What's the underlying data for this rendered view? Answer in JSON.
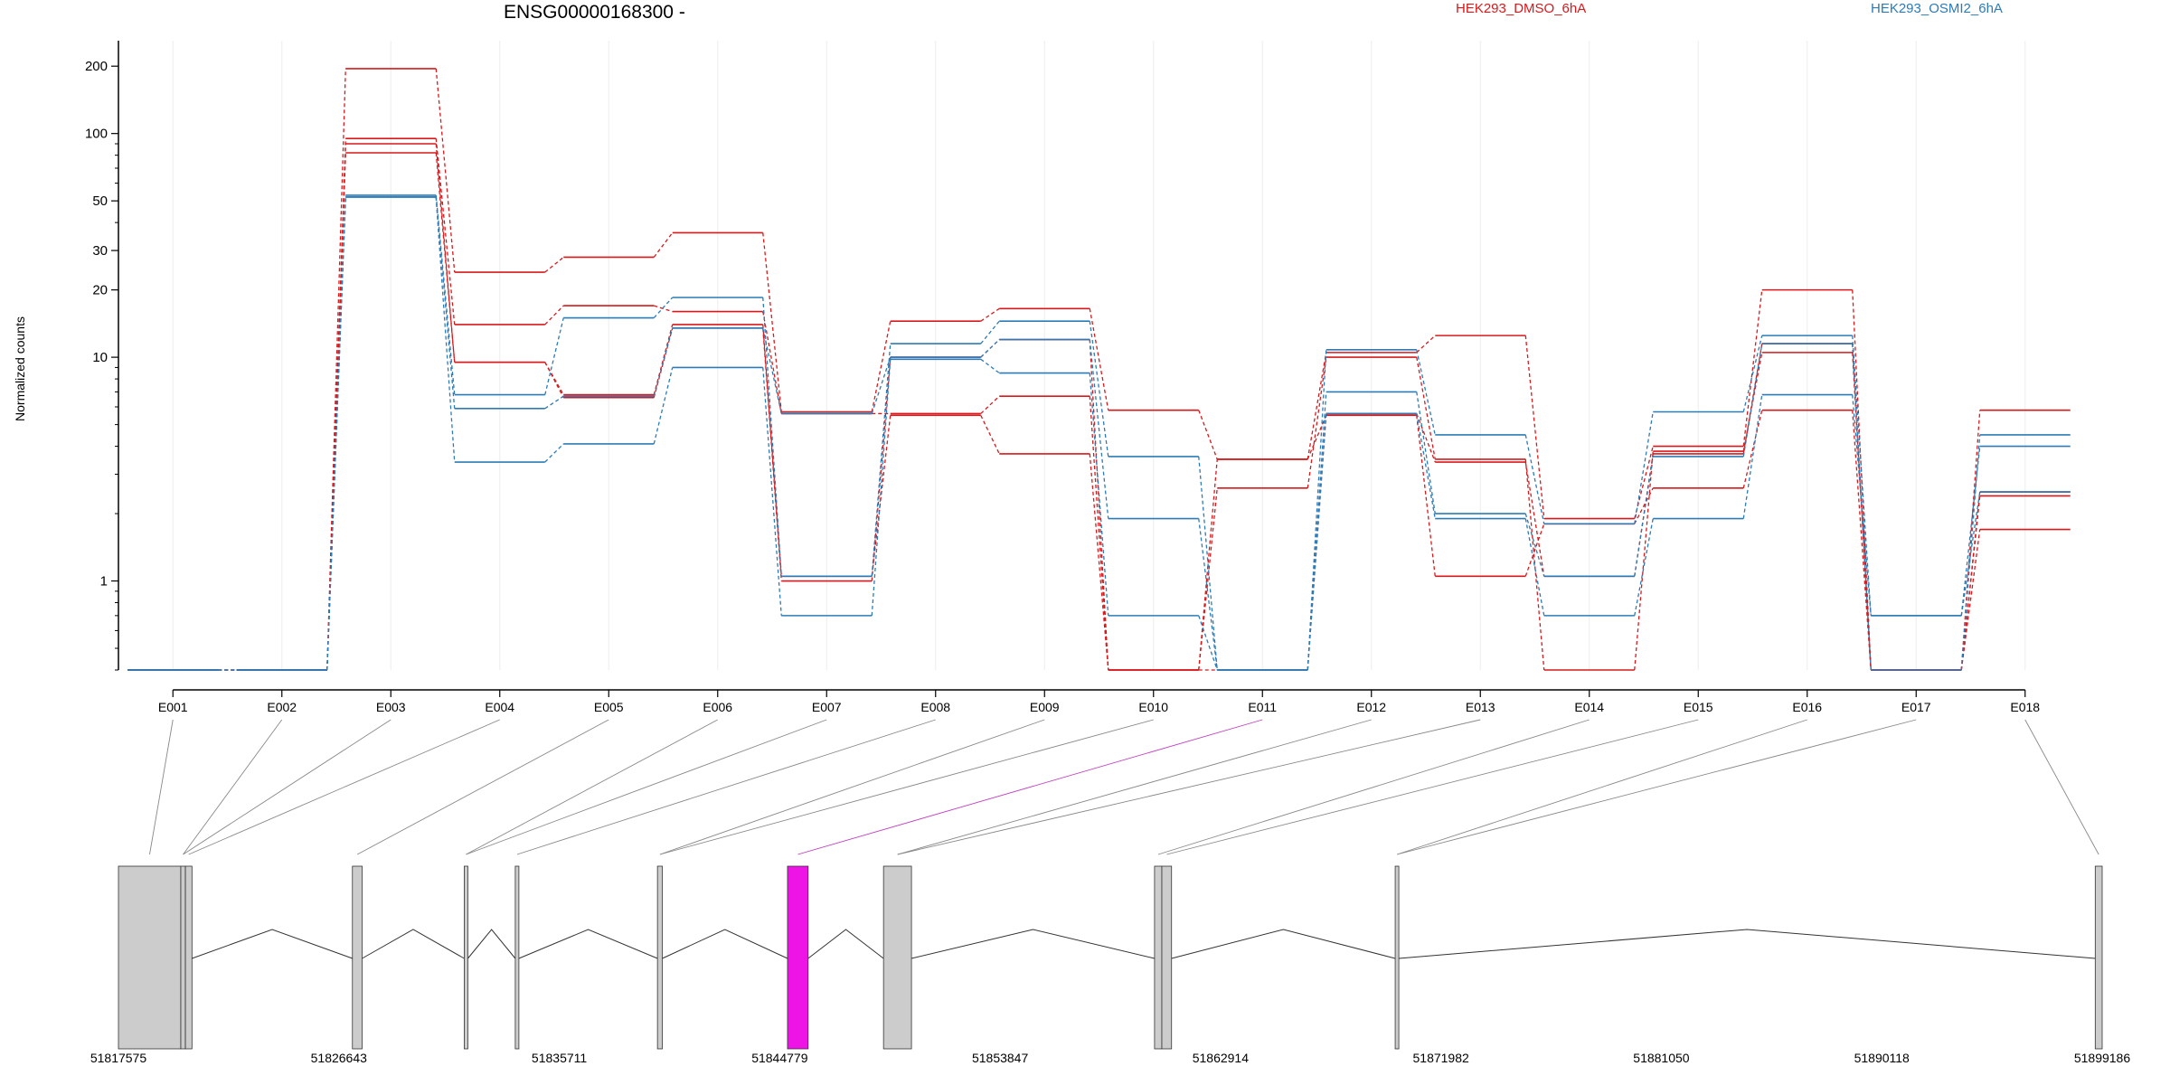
{
  "title": "ENSG00000168300 -",
  "ylabel": "Normalized counts",
  "legend": [
    {
      "label": "HEK293_DMSO_6hA",
      "color": "#d7191c"
    },
    {
      "label": "HEK293_OSMI2_6hA",
      "color": "#2c7bb6"
    }
  ],
  "colors": {
    "dmso": "#d7191c",
    "osmi": "#2c7bb6",
    "exon_fill": "#cccccc",
    "highlight": "#ee14e6"
  },
  "chart_data": {
    "type": "line",
    "yscale": "log",
    "ylim": [
      0.4,
      260
    ],
    "yticks": [
      "1",
      "10",
      "20",
      "30",
      "50",
      "100",
      "200"
    ],
    "categories": [
      "E001",
      "E002",
      "E003",
      "E004",
      "E005",
      "E006",
      "E007",
      "E008",
      "E009",
      "E010",
      "E011",
      "E012",
      "E013",
      "E014",
      "E015",
      "E016",
      "E017",
      "E018"
    ],
    "series": [
      {
        "group": "HEK293_DMSO_6hA",
        "values": [
          0.4,
          0.4,
          195,
          24,
          28,
          36,
          5.7,
          14.5,
          16.5,
          5.8,
          3.5,
          10.5,
          12.5,
          1.9,
          4.0,
          20,
          0.4,
          5.8
        ]
      },
      {
        "group": "HEK293_DMSO_6hA",
        "values": [
          0.4,
          0.4,
          95,
          14,
          17,
          16,
          5.6,
          5.6,
          6.7,
          0.4,
          2.6,
          10,
          3.5,
          0.4,
          3.8,
          10.5,
          0.4,
          2.5
        ]
      },
      {
        "group": "HEK293_DMSO_6hA",
        "values": [
          0.4,
          0.4,
          90,
          9.5,
          6.8,
          14,
          1.05,
          5.5,
          3.7,
          0.4,
          3.5,
          5.5,
          1.05,
          1.8,
          2.6,
          5.8,
          0.4,
          1.7
        ]
      },
      {
        "group": "HEK293_DMSO_6hA",
        "values": [
          0.4,
          0.4,
          82,
          9.5,
          6.6,
          13.5,
          1.0,
          10,
          12,
          0.4,
          0.4,
          5.6,
          3.4,
          1.05,
          3.7,
          11.5,
          0.4,
          2.4
        ]
      },
      {
        "group": "HEK293_OSMI2_6hA",
        "values": [
          0.4,
          0.4,
          53,
          6.8,
          15,
          18.5,
          1.05,
          11.5,
          14.5,
          3.6,
          0.4,
          10.8,
          4.5,
          1.8,
          5.7,
          12.5,
          0.7,
          4.0
        ]
      },
      {
        "group": "HEK293_OSMI2_6hA",
        "values": [
          0.4,
          0.4,
          52,
          5.9,
          6.7,
          13.5,
          5.6,
          10,
          12,
          1.9,
          0.4,
          7.0,
          2.0,
          1.05,
          3.6,
          11.5,
          0.4,
          4.5
        ]
      },
      {
        "group": "HEK293_OSMI2_6hA",
        "values": [
          0.4,
          0.4,
          52,
          3.4,
          4.1,
          9.0,
          0.7,
          9.8,
          8.5,
          0.7,
          0.4,
          5.6,
          1.9,
          0.7,
          1.9,
          6.8,
          0.7,
          2.5
        ]
      }
    ]
  },
  "gene_model": {
    "coord_ticks": [
      "51817575",
      "51826643",
      "51835711",
      "51844779",
      "51853847",
      "51862914",
      "51871982",
      "51881050",
      "51890118",
      "51899186"
    ],
    "exons": [
      {
        "id": "E001",
        "start": 51817575,
        "end": 51820140
      },
      {
        "id": "E002",
        "start": 51820140,
        "end": 51820330
      },
      {
        "id": "E003",
        "start": 51820330,
        "end": 51820600
      },
      {
        "id": "E004",
        "start": 51827200,
        "end": 51827600
      },
      {
        "id": "E005",
        "start": 51831800,
        "end": 51831950
      },
      {
        "id": "E006",
        "start": 51833900,
        "end": 51834050
      },
      {
        "id": "E007",
        "start": 51839750,
        "end": 51839950
      },
      {
        "id": "E008",
        "start": 51845100,
        "end": 51845950
      },
      {
        "id": "E009",
        "start": 51849050,
        "end": 51850200
      },
      {
        "id": "E010",
        "start": 51860200,
        "end": 51860500
      },
      {
        "id": "E011",
        "start": 51860500,
        "end": 51860900
      },
      {
        "id": "E012",
        "start": 51870100,
        "end": 51870250
      },
      {
        "id": "E013",
        "start": 51898900,
        "end": 51899186
      }
    ],
    "highlight_exon": {
      "start": 51845100,
      "end": 51845950
    }
  }
}
